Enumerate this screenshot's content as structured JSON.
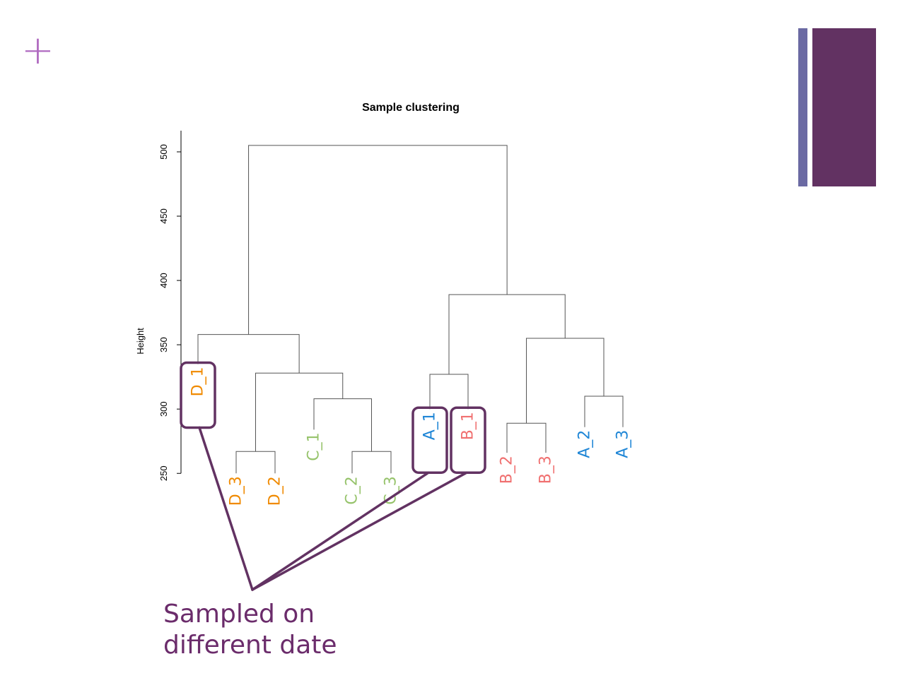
{
  "slide": {
    "plus_symbol": "+",
    "caption_lines": [
      "Sampled on",
      "different date"
    ],
    "accent_color": "#623262",
    "accent_secondary_color": "#6b6aa3",
    "plus_color": "#b06ac0"
  },
  "chart_data": {
    "type": "dendrogram",
    "title": "Sample clustering",
    "ylabel": "Height",
    "xlabel": "",
    "ylim": [
      250,
      520
    ],
    "yticks": [
      250,
      300,
      350,
      400,
      450,
      500
    ],
    "grid": false,
    "leaves": [
      {
        "label": "D_1",
        "color": "#f08a00",
        "height": 335,
        "highlighted": true
      },
      {
        "label": "D_3",
        "color": "#f08a00",
        "height": 250
      },
      {
        "label": "D_2",
        "color": "#f08a00",
        "height": 250
      },
      {
        "label": "C_1",
        "color": "#96c36b",
        "height": 284
      },
      {
        "label": "C_2",
        "color": "#96c36b",
        "height": 250
      },
      {
        "label": "C_3",
        "color": "#96c36b",
        "height": 250
      },
      {
        "label": "A_1",
        "color": "#1f86d6",
        "height": 300,
        "highlighted": true
      },
      {
        "label": "B_1",
        "color": "#f07070",
        "height": 300,
        "highlighted": true
      },
      {
        "label": "B_2",
        "color": "#f07070",
        "height": 266
      },
      {
        "label": "B_3",
        "color": "#f07070",
        "height": 266
      },
      {
        "label": "A_2",
        "color": "#1f86d6",
        "height": 286
      },
      {
        "label": "A_3",
        "color": "#1f86d6",
        "height": 286
      }
    ],
    "merges": [
      {
        "left": "D_3",
        "right": "D_2",
        "height": 267
      },
      {
        "left": "C_2",
        "right": "C_3",
        "height": 267
      },
      {
        "left": "C_1",
        "right": "m2",
        "height": 308
      },
      {
        "left": "m1",
        "right": "m3",
        "height": 328
      },
      {
        "left": "D_1",
        "right": "m4",
        "height": 358
      },
      {
        "left": "A_1",
        "right": "B_1",
        "height": 327
      },
      {
        "left": "B_2",
        "right": "B_3",
        "height": 289
      },
      {
        "left": "A_2",
        "right": "A_3",
        "height": 310
      },
      {
        "left": "m7",
        "right": "m8",
        "height": 355
      },
      {
        "left": "m6",
        "right": "m9",
        "height": 389
      },
      {
        "left": "m5",
        "right": "m10",
        "height": 505
      }
    ],
    "annotation": {
      "text_lines": [
        "Sampled on",
        "different date"
      ],
      "targets": [
        "D_1",
        "A_1",
        "B_1"
      ]
    }
  }
}
